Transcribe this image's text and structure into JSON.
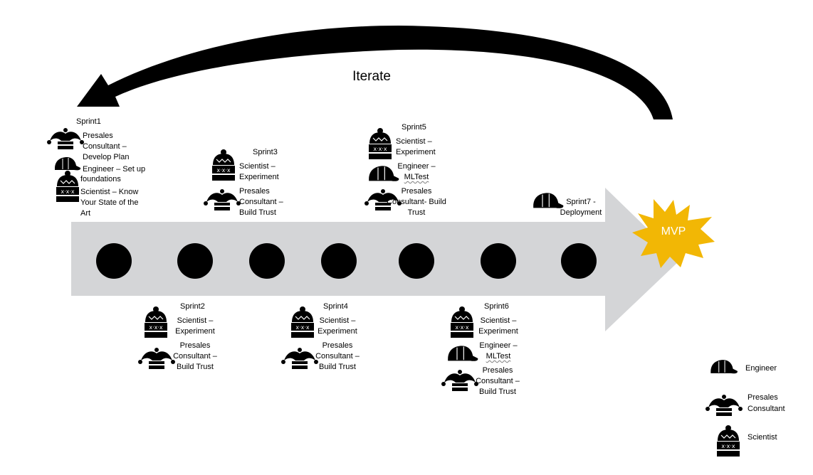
{
  "iterate_label": "Iterate",
  "mvp_label": "MVP",
  "colors": {
    "arrow_fill": "#d4d5d7",
    "loop_arrow": "#000000",
    "milestone": "#000000",
    "burst": "#f2b705"
  },
  "sprints": [
    {
      "title": "Sprint1",
      "roles": [
        {
          "icon": "jester-hat-icon",
          "lines": [
            "Presales",
            "Consultant –",
            "Develop Plan"
          ]
        },
        {
          "icon": "baseball-cap-icon",
          "lines": [
            "Engineer – Set up",
            "foundations"
          ]
        },
        {
          "icon": "beanie-icon",
          "lines": [
            "Scientist – Know",
            "Your State of the",
            "Art"
          ]
        }
      ]
    },
    {
      "title": "Sprint2",
      "roles": [
        {
          "icon": "beanie-icon",
          "lines": [
            "Scientist –",
            "Experiment"
          ]
        },
        {
          "icon": "jester-hat-icon",
          "lines": [
            "Presales",
            "Consultant –",
            "Build Trust"
          ]
        }
      ]
    },
    {
      "title": "Sprint3",
      "roles": [
        {
          "icon": "beanie-icon",
          "lines": [
            "Scientist –",
            "Experiment"
          ]
        },
        {
          "icon": "jester-hat-icon",
          "lines": [
            "Presales",
            "Consultant –",
            "Build Trust"
          ]
        }
      ]
    },
    {
      "title": "Sprint4",
      "roles": [
        {
          "icon": "beanie-icon",
          "lines": [
            "Scientist –",
            "Experiment"
          ]
        },
        {
          "icon": "jester-hat-icon",
          "lines": [
            "Presales",
            "Consultant –",
            "Build Trust"
          ]
        }
      ]
    },
    {
      "title": "Sprint5",
      "roles": [
        {
          "icon": "beanie-icon",
          "lines": [
            "Scientist –",
            "Experiment"
          ]
        },
        {
          "icon": "baseball-cap-icon",
          "lines": [
            "Engineer –",
            "MLTest"
          ]
        },
        {
          "icon": "jester-hat-icon",
          "lines": [
            "Presales",
            "Consultant- Build",
            "Trust"
          ]
        }
      ]
    },
    {
      "title": "Sprint6",
      "roles": [
        {
          "icon": "beanie-icon",
          "lines": [
            "Scientist –",
            "Experiment"
          ]
        },
        {
          "icon": "baseball-cap-icon",
          "lines": [
            "Engineer –",
            "MLTest"
          ]
        },
        {
          "icon": "jester-hat-icon",
          "lines": [
            "Presales",
            "Consultant –",
            "Build Trust"
          ]
        }
      ]
    },
    {
      "title": "Sprint7 -",
      "roles": [
        {
          "icon": "baseball-cap-icon",
          "lines": [
            "Deployment"
          ]
        }
      ]
    }
  ],
  "legend": [
    {
      "icon": "baseball-cap-icon",
      "lines": [
        "Engineer"
      ]
    },
    {
      "icon": "jester-hat-icon",
      "lines": [
        "Presales",
        "Consultant"
      ]
    },
    {
      "icon": "beanie-icon",
      "lines": [
        "Scientist"
      ]
    }
  ]
}
